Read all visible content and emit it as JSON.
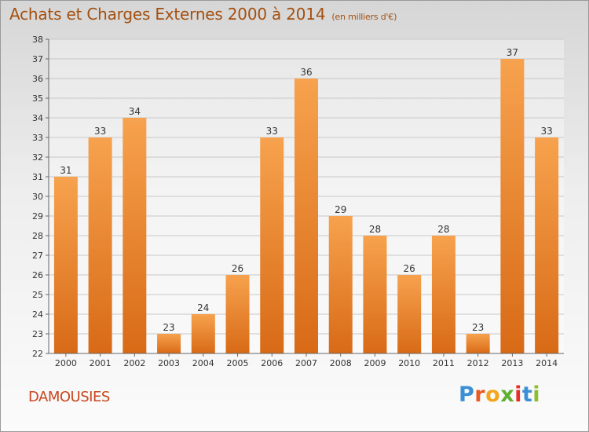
{
  "header": {
    "title": "Achats et Charges Externes 2000 à 2014",
    "subtitle": "(en milliers d'€)"
  },
  "footer": {
    "commune": "DAMOUSIES",
    "logo_text": "Proxiti"
  },
  "colors": {
    "bar_top": "#f7a24e",
    "bar_bottom": "#d86a16",
    "title": "#a35010",
    "commune": "#c9451c",
    "grid": "#c8c8c8"
  },
  "chart_data": {
    "type": "bar",
    "categories": [
      "2000",
      "2001",
      "2002",
      "2003",
      "2004",
      "2005",
      "2006",
      "2007",
      "2008",
      "2009",
      "2010",
      "2011",
      "2012",
      "2013",
      "2014"
    ],
    "values": [
      31,
      33,
      34,
      23,
      24,
      26,
      33,
      36,
      29,
      28,
      26,
      28,
      23,
      37,
      33
    ],
    "data_labels": [
      "31",
      "33",
      "34",
      "23",
      "24",
      "26",
      "33",
      "36",
      "29",
      "28",
      "26",
      "28",
      "23",
      "37",
      "33"
    ],
    "title": "Achats et Charges Externes 2000 à 2014",
    "ylim": [
      22,
      38
    ],
    "yticks": [
      "22",
      "23",
      "24",
      "25",
      "26",
      "27",
      "28",
      "29",
      "30",
      "31",
      "32",
      "33",
      "34",
      "35",
      "36",
      "37",
      "38"
    ],
    "grid": true,
    "legend": "none"
  }
}
